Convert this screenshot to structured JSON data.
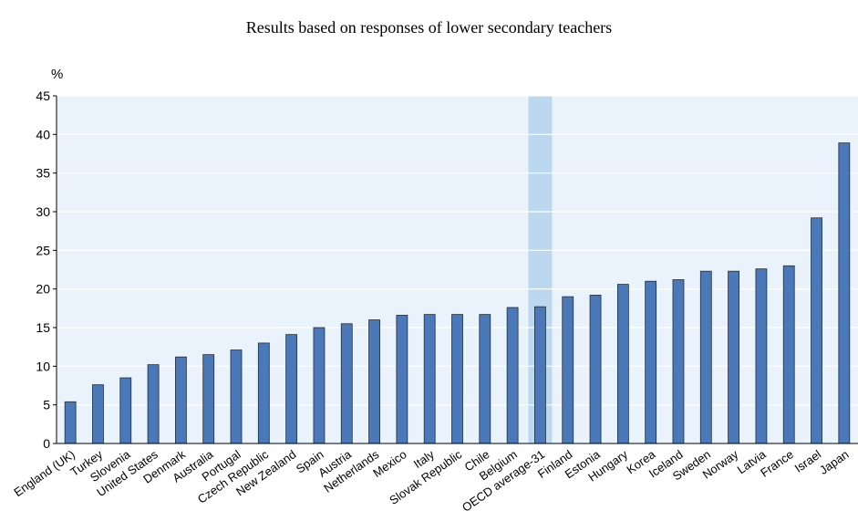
{
  "title": "Results based on responses of lower secondary teachers",
  "colors": {
    "plot_background": "#eaf3fb",
    "bar": "#4a78b9",
    "bar_stroke": "#1f2d3d",
    "highlight": "#bcd8ee"
  },
  "chart_data": {
    "type": "bar",
    "ylabel": "%",
    "ylim": [
      0,
      45
    ],
    "yticks": [
      0,
      5,
      10,
      15,
      20,
      25,
      30,
      35,
      40,
      45
    ],
    "grid": true,
    "highlighted_category": "OECD average-31",
    "categories": [
      "England (UK)",
      "Turkey",
      "Slovenia",
      "United States",
      "Denmark",
      "Australia",
      "Portugal",
      "Czech Republic",
      "New Zealand",
      "Spain",
      "Austria",
      "Netherlands",
      "Mexico",
      "Italy",
      "Slovak Republic",
      "Chile",
      "Belgium",
      "OECD average-31",
      "Finland",
      "Estonia",
      "Hungary",
      "Korea",
      "Iceland",
      "Sweden",
      "Norway",
      "Latvia",
      "France",
      "Israel",
      "Japan"
    ],
    "values": [
      5.4,
      7.6,
      8.5,
      10.2,
      11.2,
      11.5,
      12.1,
      13.0,
      14.1,
      15.0,
      15.5,
      16.0,
      16.6,
      16.7,
      16.7,
      16.7,
      17.6,
      17.7,
      19.0,
      19.2,
      20.6,
      21.0,
      21.2,
      22.3,
      22.3,
      22.6,
      23.0,
      29.2,
      38.9
    ]
  }
}
